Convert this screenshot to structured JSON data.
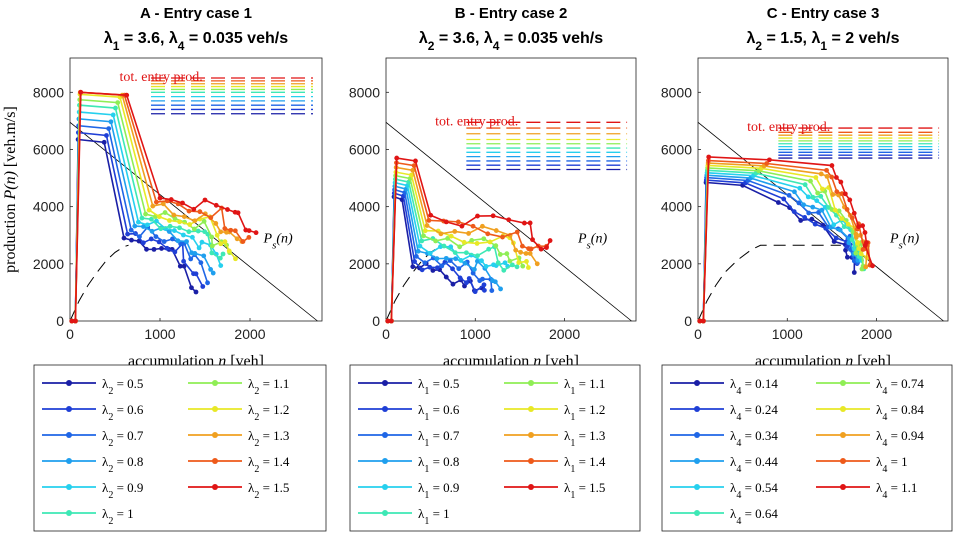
{
  "chart_data": [
    {
      "type": "line",
      "panel_letter": "A",
      "title": " - Entry case 1",
      "subtitle": "λ1 = 3.6, λ4 = 0.035 veh/s",
      "subtitle_parts": [
        "λ",
        "1",
        " = 3.6, ",
        "λ",
        "4",
        " = 0.035 veh/s"
      ],
      "xlabel": "accumulation n [veh]",
      "ylabel": "production P(n) [veh.m/s]",
      "xlim": [
        0,
        2800
      ],
      "ylim": [
        0,
        9200
      ],
      "xticks": [
        0,
        1000,
        2000
      ],
      "yticks": [
        0,
        2000,
        4000,
        6000,
        8000
      ],
      "annotation": "tot. entry prod.",
      "curve_label": "Ps(n)",
      "legend_var": "λ",
      "legend_sub": "2",
      "legend_values": [
        "0.5",
        "0.6",
        "0.7",
        "0.8",
        "0.9",
        "1",
        "1.1",
        "1.2",
        "1.3",
        "1.4",
        "1.5"
      ],
      "entry_prod_levels": [
        7250,
        7400,
        7550,
        7700,
        7850,
        8000,
        8100,
        8200,
        8300,
        8400,
        8500
      ],
      "ps_line": {
        "x": [
          0,
          2750
        ],
        "y": [
          6950,
          0
        ]
      },
      "dashed_curve": {
        "x": [
          0,
          100,
          200,
          300,
          400,
          500,
          600,
          650
        ],
        "y": [
          0,
          700,
          1250,
          1700,
          2100,
          2400,
          2600,
          2650
        ]
      },
      "profile": {
        "plateau_mult": 1.0,
        "ramp_end_base": 380,
        "ramp_end_step": 25,
        "ramp_end_x_base": 600,
        "ramp_end_x_step": 40,
        "tail_y_base": 2500,
        "tail_y_step": 140,
        "tail_x_base": 1100,
        "tail_x_step": 65,
        "end_y_base": 1200,
        "end_y_step": 160
      }
    },
    {
      "type": "line",
      "panel_letter": "B",
      "title": " - Entry case 2",
      "subtitle": "λ2 = 3.6, λ4 = 0.035 veh/s",
      "subtitle_parts": [
        "λ",
        "2",
        " = 3.6, ",
        "λ",
        "4",
        " = 0.035 veh/s"
      ],
      "xlabel": "accumulation n [veh]",
      "ylabel": "",
      "xlim": [
        0,
        2800
      ],
      "ylim": [
        0,
        9200
      ],
      "xticks": [
        0,
        1000,
        2000
      ],
      "yticks": [
        0,
        2000,
        4000,
        6000,
        8000
      ],
      "annotation": "tot. entry prod.",
      "curve_label": "Ps(n)",
      "legend_var": "λ",
      "legend_sub": "1",
      "legend_values": [
        "0.5",
        "0.6",
        "0.7",
        "0.8",
        "0.9",
        "1",
        "1.1",
        "1.2",
        "1.3",
        "1.4",
        "1.5"
      ],
      "entry_prod_levels": [
        5300,
        5450,
        5600,
        5750,
        5900,
        6050,
        6200,
        6350,
        6550,
        6750,
        6950
      ],
      "ps_line": {
        "x": [
          0,
          2750
        ],
        "y": [
          6950,
          0
        ]
      },
      "dashed_curve": {
        "x": [
          0,
          100,
          200,
          300,
          400,
          500,
          600,
          650
        ],
        "y": [
          0,
          700,
          1250,
          1700,
          2100,
          2400,
          2600,
          2650
        ]
      },
      "profile": {
        "plateau_mult": 0.82,
        "ramp_end_base": 180,
        "ramp_end_step": 15,
        "ramp_end_x_base": 300,
        "ramp_end_x_step": 20,
        "tail_y_base": 1500,
        "tail_y_step": 180,
        "tail_x_base": 750,
        "tail_x_step": 80,
        "end_y_base": 1000,
        "end_y_step": 150
      }
    },
    {
      "type": "line",
      "panel_letter": "C",
      "title": " - Entry case 3",
      "subtitle": "λ2 = 1.5, λ1 = 2 veh/s",
      "subtitle_parts": [
        "λ",
        "2",
        " = 1.5, ",
        "λ",
        "1",
        " = 2 veh/s"
      ],
      "xlabel": "accumulation n [veh]",
      "ylabel": "",
      "xlim": [
        0,
        2800
      ],
      "ylim": [
        0,
        9200
      ],
      "xticks": [
        0,
        1000,
        2000
      ],
      "yticks": [
        0,
        2000,
        4000,
        6000,
        8000
      ],
      "annotation": "tot. entry prod.",
      "curve_label": "Ps(n)",
      "legend_var": "λ",
      "legend_sub": "4",
      "legend_values": [
        "0.14",
        "0.24",
        "0.34",
        "0.44",
        "0.54",
        "0.64",
        "0.74",
        "0.84",
        "0.94",
        "1",
        "1.1"
      ],
      "entry_prod_levels": [
        5700,
        5800,
        5900,
        6000,
        6100,
        6200,
        6300,
        6400,
        6500,
        6600,
        6750
      ],
      "ps_line": {
        "x": [
          0,
          2750
        ],
        "y": [
          6950,
          0
        ]
      },
      "dashed_curve": {
        "x": [
          0,
          100,
          200,
          300,
          450,
          600,
          700,
          1600
        ],
        "y": [
          0,
          700,
          1250,
          1700,
          2150,
          2500,
          2650,
          2650
        ]
      },
      "profile": {
        "plateau_mult": 0.85,
        "ramp_end_base": 500,
        "ramp_end_step": 30,
        "ramp_end_x_base": 900,
        "ramp_end_x_step": 60,
        "tail_y_base": 2800,
        "tail_y_step": 60,
        "tail_x_base": 1650,
        "tail_x_step": 15,
        "end_y_base": 1800,
        "end_y_step": 40
      }
    }
  ],
  "series_colors": [
    "#1a1fa6",
    "#1f3fd6",
    "#1f66e6",
    "#1f9fee",
    "#26d0ee",
    "#3de8b5",
    "#8fee55",
    "#e8e826",
    "#f0a020",
    "#ee5a1a",
    "#e01515"
  ]
}
